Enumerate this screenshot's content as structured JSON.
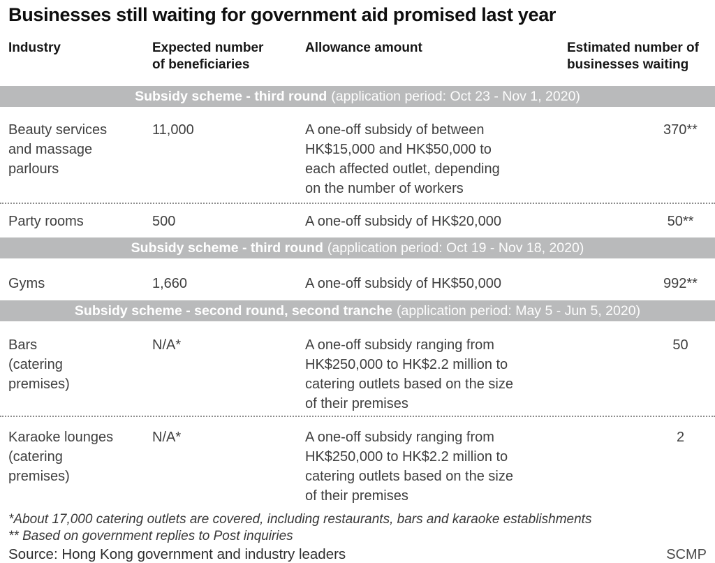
{
  "title": "Businesses still waiting for government aid promised last year",
  "columns": {
    "industry": "Industry",
    "beneficiaries": "Expected number\nof beneficiaries",
    "allowance": "Allowance amount",
    "waiting": "Estimated number of\nbusinesses waiting"
  },
  "sections": [
    {
      "scheme": "Subsidy scheme - third round",
      "period": "(application period: Oct 23 - Nov 1, 2020)",
      "rows": [
        {
          "industry": "Beauty services\nand massage\nparlours",
          "beneficiaries": "11,000",
          "allowance": "A one-off subsidy of between\nHK$15,000 and HK$50,000 to\neach affected outlet, depending\non the number of workers",
          "waiting": "370**"
        },
        {
          "industry": "Party rooms",
          "beneficiaries": "500",
          "allowance": "A one-off subsidy of HK$20,000",
          "waiting": "50**"
        }
      ]
    },
    {
      "scheme": "Subsidy scheme - third round",
      "period": "(application period: Oct 19 - Nov 18, 2020)",
      "rows": [
        {
          "industry": "Gyms",
          "beneficiaries": "1,660",
          "allowance": "A one-off subsidy of HK$50,000",
          "waiting": "992**"
        }
      ]
    },
    {
      "scheme": "Subsidy scheme - second round, second tranche",
      "period": "(application period: May 5 - Jun 5, 2020)",
      "rows": [
        {
          "industry": "Bars\n(catering\npremises)",
          "beneficiaries": "N/A*",
          "allowance": "A one-off subsidy ranging from\nHK$250,000 to HK$2.2 million to\ncatering outlets based on the size\nof their premises",
          "waiting": "50"
        },
        {
          "industry": "Karaoke lounges\n(catering\npremises)",
          "beneficiaries": "N/A*",
          "allowance": "A one-off subsidy ranging from\nHK$250,000 to HK$2.2 million to\ncatering outlets based on the size\nof their premises",
          "waiting": "2"
        }
      ]
    }
  ],
  "footnotes": [
    "*About 17,000 catering outlets are covered, including restaurants, bars and karaoke establishments",
    "** Based on government replies to Post inquiries"
  ],
  "source": "Source: Hong Kong government and industry leaders",
  "credit": "SCMP",
  "colors": {
    "band_background": "#b9babb",
    "band_text": "#ffffff",
    "body_text": "#3f3f3f",
    "heading_text": "#161616",
    "divider": "#8c8c8c"
  },
  "chart_data": {
    "type": "table",
    "title": "Businesses still waiting for government aid promised last year",
    "columns": [
      "Industry",
      "Expected number of beneficiaries",
      "Allowance amount",
      "Estimated number of businesses waiting"
    ],
    "sections": [
      {
        "section_label": "Subsidy scheme - third round (application period: Oct 23 - Nov 1, 2020)",
        "rows": [
          [
            "Beauty services and massage parlours",
            "11,000",
            "A one-off subsidy of between HK$15,000 and HK$50,000 to each affected outlet, depending on the number of workers",
            "370**"
          ],
          [
            "Party rooms",
            "500",
            "A one-off subsidy of HK$20,000",
            "50**"
          ]
        ]
      },
      {
        "section_label": "Subsidy scheme - third round (application period: Oct 19 - Nov 18, 2020)",
        "rows": [
          [
            "Gyms",
            "1,660",
            "A one-off subsidy of HK$50,000",
            "992**"
          ]
        ]
      },
      {
        "section_label": "Subsidy scheme - second round, second tranche (application period: May 5 - Jun 5, 2020)",
        "rows": [
          [
            "Bars (catering premises)",
            "N/A*",
            "A one-off subsidy ranging from HK$250,000 to HK$2.2 million to catering outlets based on the size of their premises",
            "50"
          ],
          [
            "Karaoke lounges (catering premises)",
            "N/A*",
            "A one-off subsidy ranging from HK$250,000 to HK$2.2 million to catering outlets based on the size of their premises",
            "2"
          ]
        ]
      }
    ],
    "footnotes": [
      "*About 17,000 catering outlets are covered, including restaurants, bars and karaoke establishments",
      "** Based on government replies to Post inquiries"
    ],
    "source": "Source: Hong Kong government and industry leaders",
    "credit": "SCMP"
  }
}
